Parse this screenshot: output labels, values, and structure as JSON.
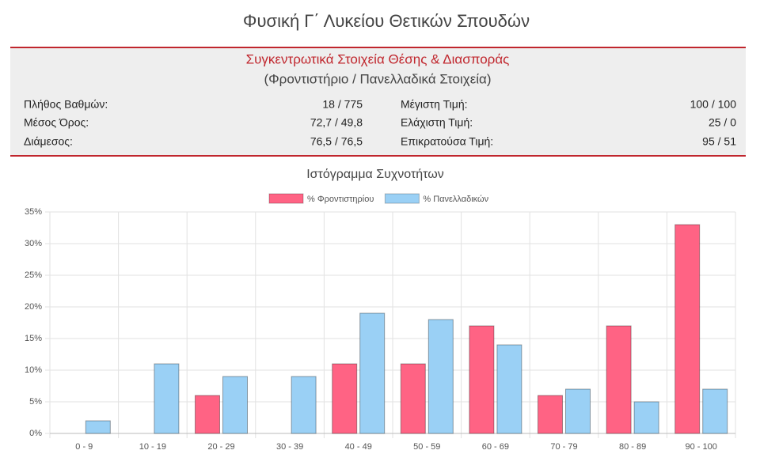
{
  "header": {
    "title": "Φυσική Γ΄ Λυκείου Θετικών Σπουδών"
  },
  "summary": {
    "title": "Συγκεντρωτικά Στοιχεία Θέσης & Διασποράς",
    "subtitle": "(Φροντιστήριο / Πανελλαδικά Στοιχεία)",
    "left": [
      [
        "Πλήθος Βαθμών:",
        "18 / 775"
      ],
      [
        "Μέσος Όρος:",
        "72,7 / 49,8"
      ],
      [
        "Διάμεσος:",
        "76,5 / 76,5"
      ]
    ],
    "right": [
      [
        "Μέγιστη Τιμή:",
        "100 / 100"
      ],
      [
        "Ελάχιστη Τιμή:",
        "25 / 0"
      ],
      [
        "Επικρατούσα Τιμή:",
        "95 / 51"
      ]
    ]
  },
  "chart_data": {
    "type": "bar",
    "title": "Ιστόγραμμα Συχνοτήτων",
    "categories": [
      "0 - 9",
      "10 - 19",
      "20 - 29",
      "30 - 39",
      "40 - 49",
      "50 - 59",
      "60 - 69",
      "70 - 79",
      "80 - 89",
      "90 - 100"
    ],
    "series": [
      {
        "name": "% Φροντιστηρίου",
        "color": "#ff6384",
        "values": [
          0,
          0,
          6,
          0,
          11,
          11,
          17,
          6,
          17,
          33
        ]
      },
      {
        "name": "% Πανελλαδικών",
        "color": "#9ad0f5",
        "values": [
          2,
          11,
          9,
          9,
          19,
          18,
          14,
          7,
          5,
          7
        ]
      }
    ],
    "ylim": [
      0,
      35
    ],
    "yticks": [
      {
        "value": 0,
        "label": "0%"
      },
      {
        "value": 5,
        "label": "5%"
      },
      {
        "value": 10,
        "label": "10%"
      },
      {
        "value": 15,
        "label": "15%"
      },
      {
        "value": 20,
        "label": "20%"
      },
      {
        "value": 25,
        "label": "25%"
      },
      {
        "value": 30,
        "label": "30%"
      },
      {
        "value": 35,
        "label": "35%"
      }
    ],
    "grid": true,
    "legend": "top"
  }
}
